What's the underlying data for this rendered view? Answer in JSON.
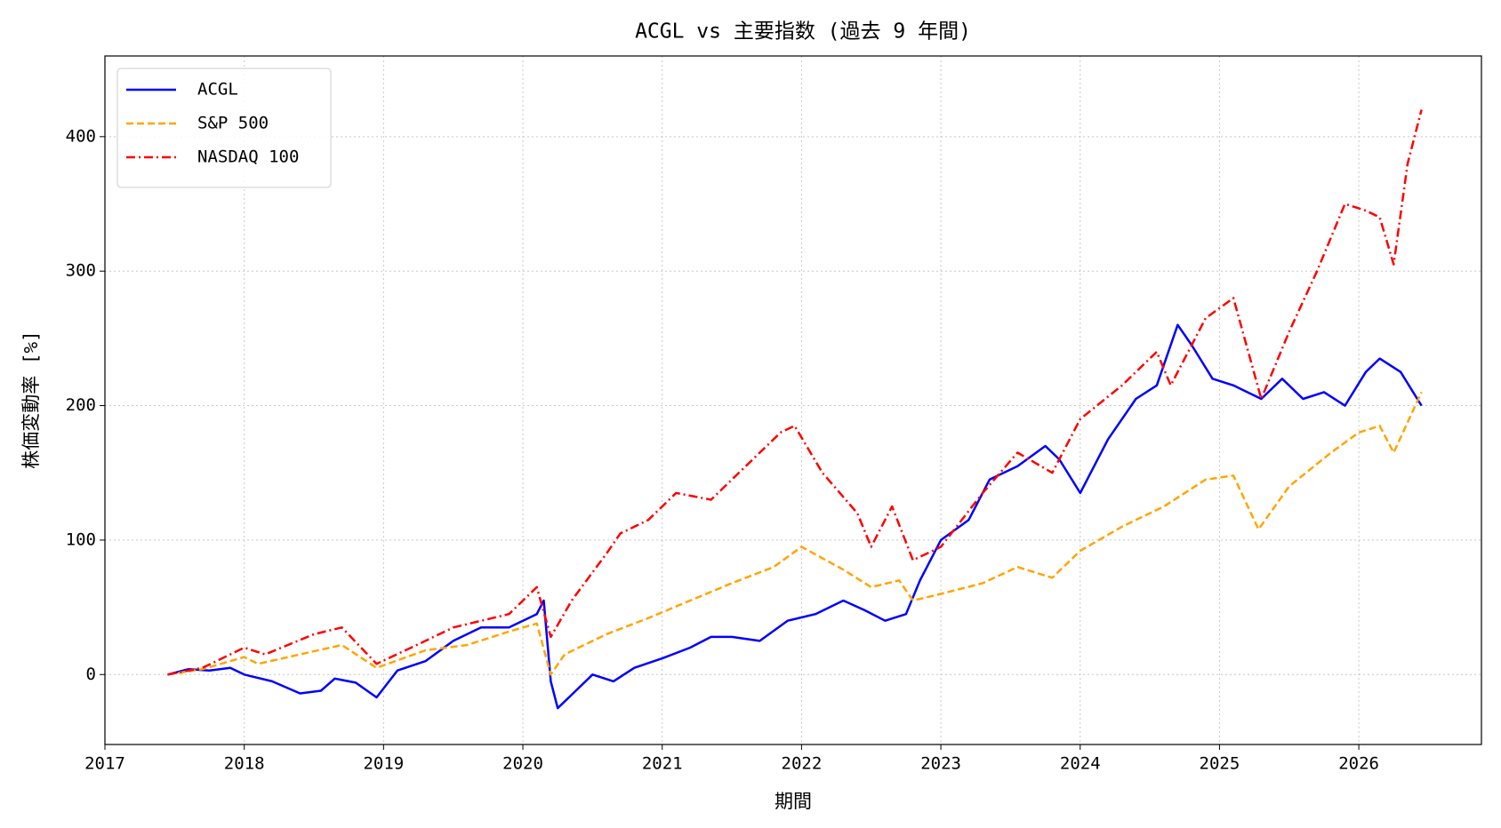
{
  "chart_data": {
    "type": "line",
    "title": "ACGL vs 主要指数 (過去 9 年間)",
    "x_label": "期間",
    "y_label": "株価変動率 [%]",
    "xlim": [
      2017,
      2026.88
    ],
    "xticks": [
      2017,
      2018,
      2019,
      2020,
      2021,
      2022,
      2023,
      2024,
      2025,
      2026
    ],
    "ylim": [
      -52,
      460
    ],
    "yticks": [
      0,
      100,
      200,
      300,
      400
    ],
    "grid": true,
    "legend": "upper left",
    "series": [
      {
        "name": "ACGL",
        "color": "#0000ff",
        "linestyle": "solid",
        "x": [
          2017.45,
          2017.6,
          2017.75,
          2017.9,
          2018.0,
          2018.2,
          2018.4,
          2018.55,
          2018.65,
          2018.8,
          2018.95,
          2019.1,
          2019.3,
          2019.5,
          2019.7,
          2019.9,
          2020.1,
          2020.15,
          2020.2,
          2020.25,
          2020.35,
          2020.5,
          2020.65,
          2020.8,
          2021.0,
          2021.2,
          2021.35,
          2021.5,
          2021.7,
          2021.9,
          2022.1,
          2022.3,
          2022.45,
          2022.6,
          2022.75,
          2022.85,
          2023.0,
          2023.2,
          2023.35,
          2023.55,
          2023.75,
          2023.85,
          2024.0,
          2024.2,
          2024.4,
          2024.55,
          2024.7,
          2024.8,
          2024.95,
          2025.1,
          2025.3,
          2025.45,
          2025.6,
          2025.75,
          2025.9,
          2026.05,
          2026.15,
          2026.3,
          2026.45
        ],
        "values": [
          0,
          4,
          3,
          5,
          0,
          -5,
          -14,
          -12,
          -3,
          -6,
          -17,
          3,
          10,
          25,
          35,
          35,
          45,
          55,
          -5,
          -25,
          -15,
          0,
          -5,
          5,
          12,
          20,
          28,
          28,
          25,
          40,
          45,
          55,
          48,
          40,
          45,
          70,
          100,
          115,
          145,
          155,
          170,
          160,
          135,
          175,
          205,
          215,
          260,
          245,
          220,
          215,
          205,
          220,
          205,
          210,
          200,
          225,
          235,
          225,
          200
        ]
      },
      {
        "name": "S&P 500",
        "color": "#ffa500",
        "linestyle": "dashed",
        "x": [
          2017.45,
          2017.7,
          2018.0,
          2018.1,
          2018.4,
          2018.7,
          2018.95,
          2019.3,
          2019.6,
          2019.9,
          2020.1,
          2020.2,
          2020.3,
          2020.6,
          2020.9,
          2021.2,
          2021.5,
          2021.8,
          2022.0,
          2022.3,
          2022.5,
          2022.7,
          2022.8,
          2023.0,
          2023.3,
          2023.55,
          2023.8,
          2024.0,
          2024.3,
          2024.6,
          2024.9,
          2025.1,
          2025.28,
          2025.5,
          2025.8,
          2026.0,
          2026.15,
          2026.25,
          2026.45
        ],
        "values": [
          0,
          4,
          13,
          8,
          15,
          22,
          5,
          18,
          22,
          32,
          38,
          0,
          15,
          30,
          42,
          55,
          68,
          80,
          95,
          78,
          65,
          70,
          55,
          60,
          68,
          80,
          72,
          92,
          110,
          125,
          145,
          148,
          108,
          140,
          165,
          180,
          185,
          165,
          210
        ]
      },
      {
        "name": "NASDAQ 100",
        "color": "#ff0000",
        "linestyle": "dashdot",
        "x": [
          2017.45,
          2017.7,
          2018.0,
          2018.15,
          2018.5,
          2018.7,
          2018.95,
          2019.3,
          2019.5,
          2019.9,
          2020.1,
          2020.2,
          2020.35,
          2020.6,
          2020.7,
          2020.9,
          2021.1,
          2021.35,
          2021.6,
          2021.85,
          2021.95,
          2022.15,
          2022.4,
          2022.5,
          2022.65,
          2022.8,
          2023.0,
          2023.3,
          2023.55,
          2023.8,
          2024.0,
          2024.3,
          2024.55,
          2024.65,
          2024.9,
          2025.1,
          2025.3,
          2025.5,
          2025.7,
          2025.9,
          2026.05,
          2026.15,
          2026.25,
          2026.35,
          2026.45
        ],
        "values": [
          0,
          5,
          20,
          15,
          30,
          35,
          8,
          25,
          35,
          45,
          65,
          28,
          55,
          90,
          105,
          115,
          135,
          130,
          155,
          180,
          185,
          150,
          120,
          95,
          125,
          85,
          95,
          135,
          165,
          150,
          190,
          215,
          240,
          215,
          265,
          280,
          205,
          255,
          300,
          350,
          345,
          340,
          305,
          380,
          420
        ]
      }
    ]
  }
}
